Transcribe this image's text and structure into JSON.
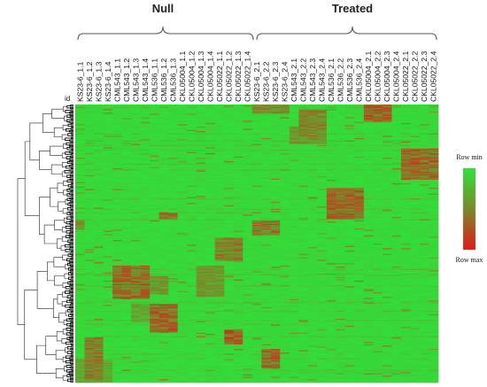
{
  "chart_data": {
    "type": "heatmap",
    "groups": [
      {
        "name": "Null",
        "columns": [
          "KS23-6_1.1",
          "KS23-6_1.2",
          "KS23-6_1.3",
          "KS23-6_1.4",
          "CML543_1.1",
          "CML543_1.2",
          "CML543_1.3",
          "CML543_1.4",
          "CML536_1.1",
          "CML536_1.2",
          "CML536_1.3",
          "CKL05004_1.1",
          "CKL05004_1.2",
          "CKL05004_1.3",
          "CKL05004_1.4",
          "CKL05022_1.1",
          "CKL05022_1.2",
          "CKL05022_1.3",
          "CKL05022_1.4"
        ]
      },
      {
        "name": "Treated",
        "columns": [
          "KS23-6_2.1",
          "KS23-6_2.2",
          "KS23-6_2.3",
          "KS23-6_2.4",
          "CML543_2.1",
          "CML543_2.2",
          "CML543_2.3",
          "CML543_2.4",
          "CML536_2.1",
          "CML536_2.2",
          "CML536_2.3",
          "CML536_2.4",
          "CKL05004_2.1",
          "CKL05004_2.2",
          "CKL05004_2.3",
          "CKL05004_2.4",
          "CKL05022_2.1",
          "CKL05022_2.2",
          "CKL05022_2.3",
          "CKL05022_2.4"
        ]
      }
    ],
    "row_label": "id",
    "colorscale": {
      "low_label": "Row min",
      "high_label": "Row max",
      "low_color": "#2ee23a",
      "mid_color": "#7a8a2a",
      "high_color": "#e01818"
    },
    "row_clusters": [
      {
        "rows": [
          0.0,
          0.03
        ],
        "columns": [
          "KS23-6_2.1",
          "KS23-6_2.2",
          "KS23-6_2.3",
          "KS23-6_2.4"
        ],
        "level": 0.55
      },
      {
        "rows": [
          0.0,
          0.06
        ],
        "columns": [
          "CKL05004_2.1",
          "CKL05004_2.2",
          "CKL05004_2.3"
        ],
        "level": 0.8
      },
      {
        "rows": [
          0.02,
          0.09
        ],
        "columns": [
          "CML543_2.2",
          "CML543_2.3",
          "CML543_2.4"
        ],
        "level": 0.6
      },
      {
        "rows": [
          0.08,
          0.14
        ],
        "columns": [
          "CML543_2.1",
          "CML543_2.2",
          "CML543_2.3",
          "CML543_2.4"
        ],
        "level": 0.55
      },
      {
        "rows": [
          0.16,
          0.27
        ],
        "columns": [
          "CKL05022_2.1",
          "CKL05022_2.2",
          "CKL05022_2.3",
          "CKL05022_2.4"
        ],
        "level": 0.75
      },
      {
        "rows": [
          0.3,
          0.41
        ],
        "columns": [
          "CML536_2.1",
          "CML536_2.2",
          "CML536_2.3",
          "CML536_2.4"
        ],
        "level": 0.75
      },
      {
        "rows": [
          0.39,
          0.41
        ],
        "columns": [
          "CML536_1.2",
          "CML536_1.3"
        ],
        "level": 0.7
      },
      {
        "rows": [
          0.42,
          0.47
        ],
        "columns": [
          "KS23-6_2.1",
          "KS23-6_2.2",
          "KS23-6_2.3"
        ],
        "level": 0.7
      },
      {
        "rows": [
          0.42,
          0.45
        ],
        "columns": [
          "KS23-6_1.1"
        ],
        "level": 0.6
      },
      {
        "rows": [
          0.48,
          0.56
        ],
        "columns": [
          "CKL05022_1.1",
          "CKL05022_1.2",
          "CKL05022_1.3"
        ],
        "level": 0.65
      },
      {
        "rows": [
          0.58,
          0.7
        ],
        "columns": [
          "CML543_1.1",
          "CML543_1.2",
          "CML543_1.3",
          "CML543_1.4"
        ],
        "level": 0.75
      },
      {
        "rows": [
          0.58,
          0.69
        ],
        "columns": [
          "CKL05004_1.3",
          "CKL05004_1.4",
          "CKL05022_1.1"
        ],
        "level": 0.5
      },
      {
        "rows": [
          0.62,
          0.68
        ],
        "columns": [
          "CML536_1.1",
          "CML536_1.2"
        ],
        "level": 0.5
      },
      {
        "rows": [
          0.72,
          0.82
        ],
        "columns": [
          "CML536_1.1",
          "CML536_1.2",
          "CML536_1.3"
        ],
        "level": 0.75
      },
      {
        "rows": [
          0.72,
          0.78
        ],
        "columns": [
          "CML543_1.3",
          "CML543_1.4"
        ],
        "level": 0.4
      },
      {
        "rows": [
          0.81,
          0.86
        ],
        "columns": [
          "CKL05022_1.2",
          "CKL05022_1.3"
        ],
        "level": 0.85
      },
      {
        "rows": [
          0.84,
          0.99
        ],
        "columns": [
          "KS23-6_1.2",
          "KS23-6_1.3"
        ],
        "level": 0.65
      },
      {
        "rows": [
          0.88,
          0.95
        ],
        "columns": [
          "KS23-6_2.2",
          "KS23-6_2.3"
        ],
        "level": 0.75
      },
      {
        "rows": [
          0.92,
          1.0
        ],
        "columns": [
          "KS23-6_1.1",
          "KS23-6_1.2",
          "KS23-6_1.3",
          "KS23-6_1.4"
        ],
        "level": 0.4
      }
    ]
  }
}
